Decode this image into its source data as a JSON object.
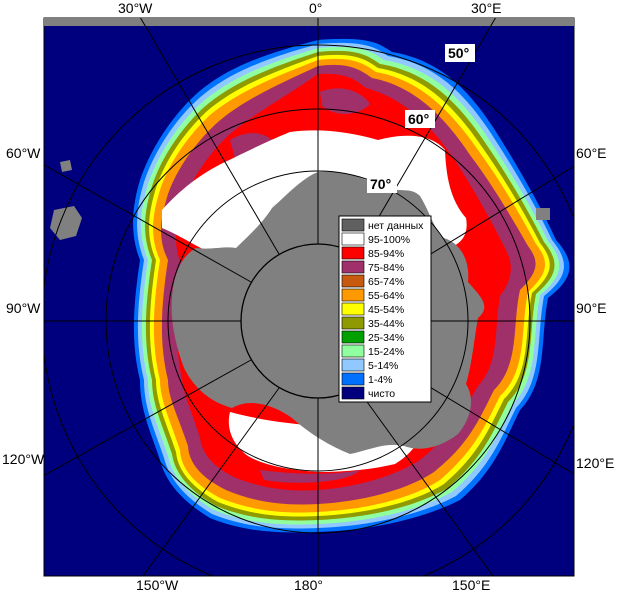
{
  "map": {
    "lon_labels": {
      "top": [
        "30°W",
        "0°",
        "30°E"
      ],
      "left": [
        "60°W",
        "90°W",
        "120°W"
      ],
      "right": [
        "60°E",
        "90°E",
        "120°E"
      ],
      "bottom": [
        "150°W",
        "180°",
        "150°E"
      ]
    },
    "lat_labels": [
      "50°",
      "60°",
      "70°"
    ],
    "colors": {
      "ocean": "#00007f",
      "nodata": "#808080",
      "land": "#808080",
      "c95_100": "#ffffff",
      "c85_94": "#ff0000",
      "c75_84": "#a0306a",
      "c65_74": "#c85a10",
      "c55_64": "#ff9900",
      "c45_54": "#ffff00",
      "c35_44": "#8e9a00",
      "c25_34": "#00a000",
      "c15_24": "#90ffa0",
      "c5_14": "#90c8ff",
      "c1_4": "#0070ff"
    }
  },
  "legend": {
    "items": [
      {
        "label": "нет данных",
        "color": "#606060"
      },
      {
        "label": "95-100%",
        "color": "#ffffff"
      },
      {
        "label": "85-94%",
        "color": "#ff0000"
      },
      {
        "label": "75-84%",
        "color": "#a0306a"
      },
      {
        "label": "65-74%",
        "color": "#c85a10"
      },
      {
        "label": "55-64%",
        "color": "#ff9900"
      },
      {
        "label": "45-54%",
        "color": "#ffff00"
      },
      {
        "label": "35-44%",
        "color": "#8e9a00"
      },
      {
        "label": "25-34%",
        "color": "#00a000"
      },
      {
        "label": "15-24%",
        "color": "#90ffa0"
      },
      {
        "label": "5-14%",
        "color": "#90c8ff"
      },
      {
        "label": "1-4%",
        "color": "#0070ff"
      },
      {
        "label": "чисто",
        "color": "#00007f"
      }
    ]
  }
}
